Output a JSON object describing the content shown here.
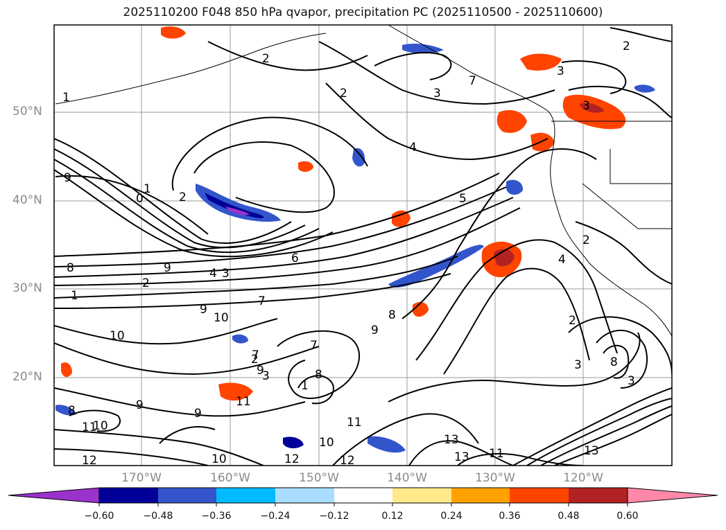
{
  "title": "2025110200 F048 850 hPa qvapor, precipitation PC (2025110500 - 2025110600)",
  "lat_labels": [
    "50°N",
    "40°N",
    "30°N",
    "20°N"
  ],
  "lon_labels": [
    "170°W",
    "160°W",
    "150°W",
    "140°W",
    "130°W",
    "120°W"
  ],
  "colorbar": {
    "ticks": [
      "−0.60",
      "−0.48",
      "−0.36",
      "−0.24",
      "−0.12",
      "0.12",
      "0.24",
      "0.36",
      "0.48",
      "0.60"
    ],
    "colors": [
      "#9933cc",
      "#000099",
      "#3355cc",
      "#00bbff",
      "#aaddff",
      "#ffffff",
      "#ffe98a",
      "#ffa200",
      "#ff4400",
      "#b22222",
      "#ff88aa"
    ]
  },
  "contour_labels": [
    "2",
    "2",
    "3",
    "3",
    "3",
    "2",
    "4",
    "5",
    "1",
    "0",
    "2",
    "1",
    "9",
    "9",
    "8",
    "2",
    "4",
    "6",
    "3",
    "1",
    "9",
    "10",
    "7",
    "10",
    "8",
    "9",
    "7",
    "2",
    "9",
    "7",
    "3",
    "1",
    "8",
    "9",
    "11",
    "10",
    "8",
    "9",
    "11",
    "10",
    "12",
    "12",
    "13",
    "13",
    "11",
    "12",
    "13",
    "10",
    "11",
    "2",
    "3",
    "8",
    "3",
    "4",
    "2",
    "7"
  ],
  "colors": {
    "contour": "#000000",
    "grid": "#9a9a9a",
    "coast": "#000000",
    "axis_text": "#8a8a8a"
  }
}
